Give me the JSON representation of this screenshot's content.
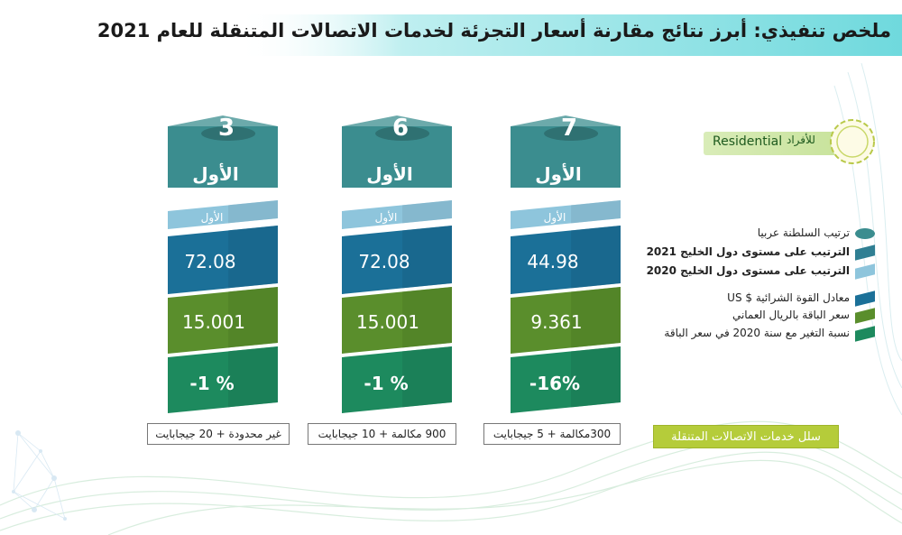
{
  "header": {
    "title": "ملخص تنفيذي: أبرز نتائج مقارنة أسعار التجزئة لخدمات الاتصالات المتنقلة للعام 2021"
  },
  "segment": {
    "label_en": "Residential",
    "label_ar": "للأفراد"
  },
  "basket_label": "سلل خدمات الاتصالات المتنقلة",
  "colors": {
    "rank_arab": "#3b8d8f",
    "rank_gcc_2021": "#2f7f93",
    "rank_gcc_2020": "#8ec5dc",
    "ppp_usd": "#1b7098",
    "price_omr": "#5a8e2c",
    "change_pct": "#1d8a5e"
  },
  "chart_data": {
    "type": "table",
    "legend": [
      {
        "key": "rank_arab",
        "label": "ترتيب السلطنة عربيا",
        "bold": false
      },
      {
        "key": "rank_gcc_2021",
        "label": "الترتيب على مستوى دول الخليج 2021",
        "bold": true
      },
      {
        "key": "rank_gcc_2020",
        "label": "الترتيب على مستوى دول الخليج 2020",
        "bold": true
      },
      {
        "key": "ppp_usd",
        "label": "معادل القوة الشرائية $ US",
        "bold": false
      },
      {
        "key": "price_omr",
        "label": "سعر الباقة بالريال العماني",
        "bold": false
      },
      {
        "key": "change_pct",
        "label": "نسبة التغير مع سنة 2020  في سعر الباقة",
        "bold": false
      }
    ],
    "stacks": [
      {
        "basket": "300مكالمة + 5 جيجابايت",
        "rank_arab": "7",
        "rank_gcc_2021": "الأول",
        "rank_gcc_2020": "الأول",
        "ppp_usd": "44.98",
        "price_omr": "9.361",
        "change_pct": "-16%"
      },
      {
        "basket": "900 مكالمة + 10 جيجابايت",
        "rank_arab": "6",
        "rank_gcc_2021": "الأول",
        "rank_gcc_2020": "الأول",
        "ppp_usd": "72.08",
        "price_omr": "15.001",
        "change_pct": "-1 %"
      },
      {
        "basket": "غير محدودة + 20 جيجابايت",
        "rank_arab": "3",
        "rank_gcc_2021": "الأول",
        "rank_gcc_2020": "الأول",
        "ppp_usd": "72.08",
        "price_omr": "15.001",
        "change_pct": "-1 %"
      }
    ]
  }
}
